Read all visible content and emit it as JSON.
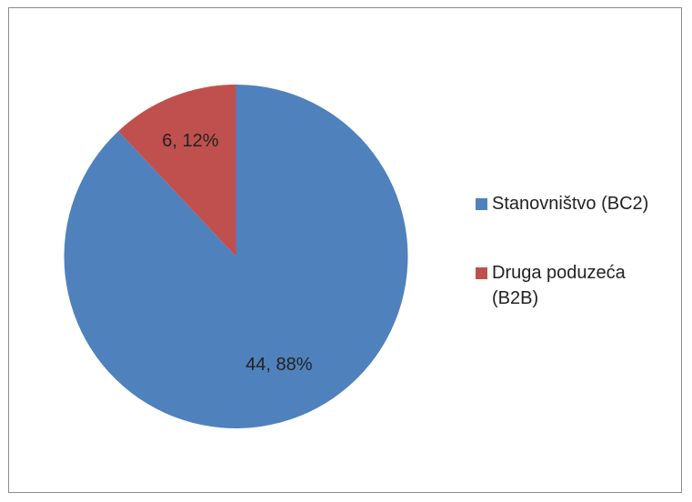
{
  "chart_data": {
    "type": "pie",
    "title": "",
    "categories": [
      "Stanovništvo (BC2)",
      "Druga poduzeća (B2B)"
    ],
    "values": [
      44,
      6
    ],
    "percentages": [
      88,
      12
    ],
    "data_labels": [
      "44, 88%",
      "6, 12%"
    ],
    "colors": [
      "#4f81bd",
      "#c0504d"
    ],
    "legend_position": "right",
    "start_angle_deg": 0,
    "direction": "clockwise"
  }
}
